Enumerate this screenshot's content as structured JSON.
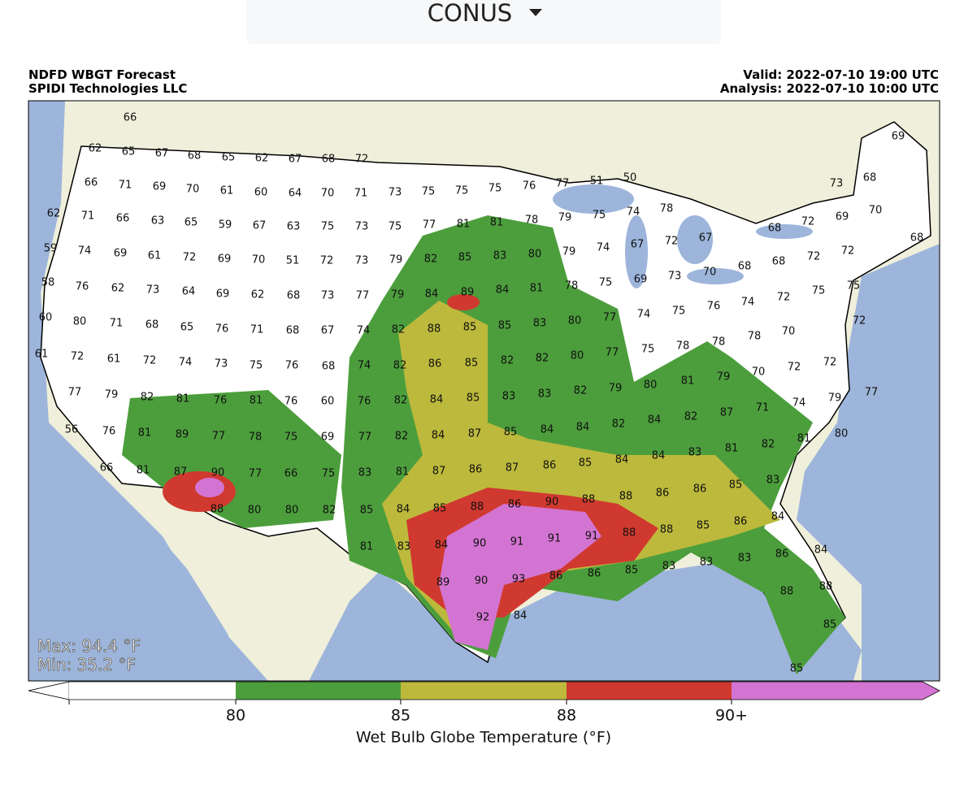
{
  "selector": {
    "label": "CONUS"
  },
  "header": {
    "title": "NDFD WBGT Forecast",
    "credit": "SPIDI Technologies LLC",
    "valid": "Valid: 2022-07-10 19:00 UTC",
    "analysis": "Analysis: 2022-07-10 10:00 UTC"
  },
  "map": {
    "max": "Max: 94.4 °F",
    "min": "Min: 35.2 °F",
    "stations": [
      66,
      62,
      65,
      67,
      68,
      65,
      62,
      67,
      68,
      72,
      66,
      71,
      69,
      70,
      61,
      60,
      64,
      70,
      71,
      73,
      75,
      75,
      75,
      76,
      77,
      51,
      50,
      62,
      71,
      66,
      63,
      65,
      59,
      67,
      63,
      75,
      73,
      75,
      77,
      81,
      81,
      78,
      79,
      75,
      74,
      78,
      72,
      69,
      70,
      73,
      68,
      69,
      59,
      74,
      69,
      61,
      72,
      69,
      70,
      51,
      72,
      73,
      79,
      82,
      85,
      83,
      80,
      79,
      74,
      67,
      72,
      67,
      68,
      68,
      72,
      72,
      68,
      58,
      76,
      62,
      73,
      64,
      69,
      62,
      68,
      73,
      77,
      79,
      84,
      89,
      84,
      81,
      78,
      75,
      69,
      73,
      70,
      68,
      74,
      72,
      75,
      75,
      60,
      80,
      71,
      68,
      65,
      76,
      71,
      68,
      67,
      74,
      82,
      88,
      85,
      85,
      83,
      80,
      77,
      74,
      75,
      76,
      78,
      70,
      72,
      78,
      61,
      72,
      61,
      72,
      74,
      73,
      75,
      76,
      68,
      74,
      82,
      86,
      85,
      82,
      82,
      80,
      77,
      75,
      78,
      79,
      70,
      72,
      72,
      77,
      79,
      82,
      81,
      76,
      81,
      76,
      60,
      76,
      82,
      84,
      85,
      83,
      83,
      82,
      79,
      80,
      81,
      87,
      71,
      74,
      79,
      77,
      56,
      76,
      81,
      89,
      77,
      78,
      75,
      69,
      77,
      82,
      84,
      87,
      85,
      84,
      84,
      82,
      84,
      82,
      81,
      82,
      81,
      80,
      66,
      81,
      87,
      90,
      77,
      66,
      75,
      83,
      81,
      87,
      86,
      87,
      86,
      85,
      84,
      84,
      83,
      85,
      83,
      88,
      80,
      80,
      82,
      85,
      84,
      85,
      88,
      86,
      90,
      88,
      88,
      86,
      86,
      86,
      84,
      81,
      83,
      84,
      90,
      91,
      91,
      91,
      88,
      88,
      85,
      89,
      90,
      93,
      86,
      86,
      85,
      83,
      83,
      83,
      86,
      84,
      88,
      88,
      92,
      84,
      85,
      85
    ]
  },
  "colorbar": {
    "title": "Wet Bulb Globe Temperature (°F)",
    "colors": [
      "#ffffff",
      "#4c9e3c",
      "#bdb93c",
      "#d0392f",
      "#d374d2"
    ],
    "ticks": [
      80,
      85,
      88,
      {
        "value": 90,
        "label": "90+"
      }
    ]
  }
}
